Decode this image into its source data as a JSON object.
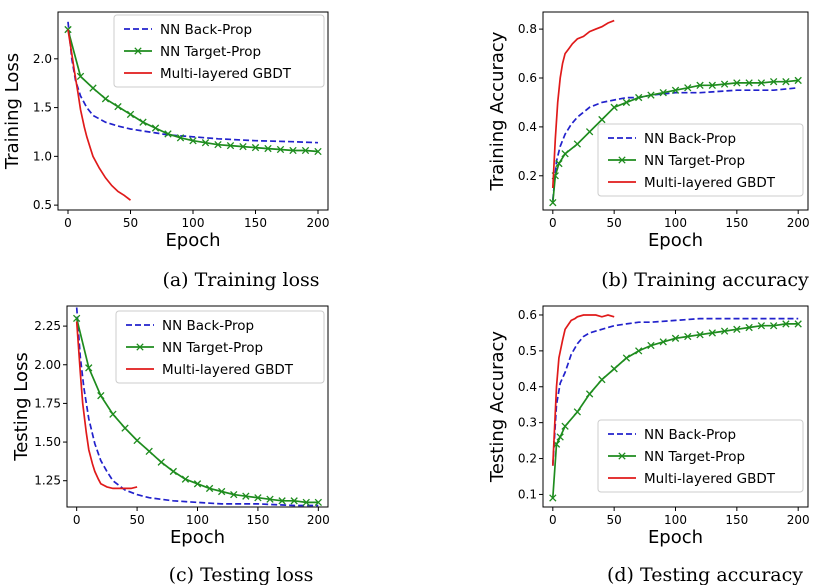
{
  "colors": {
    "backprop": "#2222cc",
    "targetprop": "#1e8c1e",
    "gbdt": "#e01a1a"
  },
  "chart_data": [
    {
      "type": "line",
      "caption": "(a) Training loss",
      "xlabel": "Epoch",
      "ylabel": "Training Loss",
      "xlim": [
        -8,
        208
      ],
      "ylim": [
        0.45,
        2.48
      ],
      "xticks": [
        0,
        50,
        100,
        150,
        200
      ],
      "xtick_labels": [
        "0",
        "50",
        "100",
        "150",
        "200"
      ],
      "yticks": [
        0.5,
        1.0,
        1.5,
        2.0
      ],
      "ytick_labels": [
        "0.5",
        "1.0",
        "1.5",
        "2.0"
      ],
      "legend_position": "upper right",
      "series": [
        {
          "name": "NN Back-Prop",
          "style": "dashed",
          "x": [
            0,
            3,
            6,
            10,
            15,
            20,
            30,
            40,
            50,
            60,
            70,
            80,
            100,
            120,
            150,
            180,
            200
          ],
          "y": [
            2.38,
            2.0,
            1.78,
            1.62,
            1.5,
            1.42,
            1.35,
            1.31,
            1.28,
            1.26,
            1.24,
            1.22,
            1.2,
            1.18,
            1.16,
            1.15,
            1.14
          ]
        },
        {
          "name": "NN Target-Prop",
          "style": "solid-x",
          "x": [
            0,
            10,
            20,
            30,
            40,
            50,
            60,
            70,
            80,
            90,
            100,
            110,
            120,
            130,
            140,
            150,
            160,
            170,
            180,
            190,
            200
          ],
          "y": [
            2.3,
            1.82,
            1.7,
            1.59,
            1.51,
            1.43,
            1.35,
            1.29,
            1.23,
            1.19,
            1.16,
            1.14,
            1.12,
            1.11,
            1.1,
            1.09,
            1.08,
            1.07,
            1.06,
            1.06,
            1.05
          ]
        },
        {
          "name": "Multi-layered GBDT",
          "style": "solid",
          "x": [
            0,
            3,
            5,
            8,
            10,
            13,
            15,
            18,
            20,
            25,
            30,
            35,
            40,
            45,
            50
          ],
          "y": [
            2.3,
            2.05,
            1.88,
            1.65,
            1.48,
            1.3,
            1.2,
            1.08,
            1.0,
            0.88,
            0.78,
            0.7,
            0.64,
            0.6,
            0.55
          ]
        }
      ]
    },
    {
      "type": "line",
      "caption": "(b) Training accuracy",
      "xlabel": "Epoch",
      "ylabel": "Training Accuracy",
      "xlim": [
        -8,
        208
      ],
      "ylim": [
        0.06,
        0.87
      ],
      "xticks": [
        0,
        50,
        100,
        150,
        200
      ],
      "xtick_labels": [
        "0",
        "50",
        "100",
        "150",
        "200"
      ],
      "yticks": [
        0.2,
        0.4,
        0.6,
        0.8
      ],
      "ytick_labels": [
        "0.2",
        "0.4",
        "0.6",
        "0.8"
      ],
      "legend_position": "lower right",
      "series": [
        {
          "name": "NN Back-Prop",
          "style": "dashed",
          "x": [
            0,
            3,
            6,
            10,
            15,
            20,
            30,
            40,
            50,
            60,
            70,
            80,
            100,
            120,
            150,
            180,
            200
          ],
          "y": [
            0.1,
            0.26,
            0.32,
            0.37,
            0.41,
            0.44,
            0.48,
            0.5,
            0.51,
            0.52,
            0.52,
            0.53,
            0.54,
            0.54,
            0.55,
            0.55,
            0.56
          ]
        },
        {
          "name": "NN Target-Prop",
          "style": "solid-x",
          "x": [
            0,
            2,
            5,
            10,
            20,
            30,
            40,
            50,
            60,
            70,
            80,
            90,
            100,
            110,
            120,
            130,
            140,
            150,
            160,
            170,
            180,
            190,
            200
          ],
          "y": [
            0.09,
            0.2,
            0.25,
            0.29,
            0.33,
            0.38,
            0.43,
            0.48,
            0.5,
            0.52,
            0.53,
            0.54,
            0.55,
            0.56,
            0.57,
            0.57,
            0.575,
            0.58,
            0.58,
            0.58,
            0.585,
            0.585,
            0.59
          ]
        },
        {
          "name": "Multi-layered GBDT",
          "style": "solid",
          "x": [
            0,
            2,
            4,
            6,
            8,
            10,
            13,
            16,
            20,
            25,
            30,
            35,
            40,
            45,
            50
          ],
          "y": [
            0.15,
            0.35,
            0.5,
            0.6,
            0.66,
            0.7,
            0.72,
            0.74,
            0.76,
            0.77,
            0.79,
            0.8,
            0.81,
            0.825,
            0.835
          ]
        }
      ]
    },
    {
      "type": "line",
      "caption": "(c) Testing loss",
      "xlabel": "Epoch",
      "ylabel": "Testing Loss",
      "xlim": [
        -8,
        208
      ],
      "ylim": [
        1.08,
        2.38
      ],
      "xticks": [
        0,
        50,
        100,
        150,
        200
      ],
      "xtick_labels": [
        "0",
        "50",
        "100",
        "150",
        "200"
      ],
      "yticks": [
        1.25,
        1.5,
        1.75,
        2.0,
        2.25
      ],
      "ytick_labels": [
        "1.25",
        "1.50",
        "1.75",
        "2.00",
        "2.25"
      ],
      "legend_position": "upper right",
      "series": [
        {
          "name": "NN Back-Prop",
          "style": "dashed",
          "x": [
            0,
            3,
            6,
            10,
            15,
            20,
            25,
            30,
            40,
            50,
            60,
            70,
            80,
            100,
            120,
            150,
            180,
            200
          ],
          "y": [
            2.37,
            2.05,
            1.85,
            1.65,
            1.49,
            1.38,
            1.31,
            1.25,
            1.19,
            1.16,
            1.14,
            1.13,
            1.12,
            1.11,
            1.1,
            1.1,
            1.09,
            1.09
          ]
        },
        {
          "name": "NN Target-Prop",
          "style": "solid-x",
          "x": [
            0,
            10,
            20,
            30,
            40,
            50,
            60,
            70,
            80,
            90,
            100,
            110,
            120,
            130,
            140,
            150,
            160,
            170,
            180,
            190,
            200
          ],
          "y": [
            2.3,
            1.98,
            1.8,
            1.68,
            1.59,
            1.51,
            1.44,
            1.37,
            1.31,
            1.26,
            1.23,
            1.2,
            1.18,
            1.16,
            1.15,
            1.14,
            1.13,
            1.12,
            1.12,
            1.11,
            1.11
          ]
        },
        {
          "name": "Multi-layered GBDT",
          "style": "solid",
          "x": [
            0,
            3,
            5,
            8,
            10,
            13,
            15,
            18,
            20,
            25,
            30,
            35,
            40,
            45,
            50
          ],
          "y": [
            2.28,
            1.95,
            1.75,
            1.56,
            1.45,
            1.36,
            1.31,
            1.26,
            1.23,
            1.21,
            1.2,
            1.2,
            1.2,
            1.2,
            1.21
          ]
        }
      ]
    },
    {
      "type": "line",
      "caption": "(d) Testing accuracy",
      "xlabel": "Epoch",
      "ylabel": "Testing Accuracy",
      "xlim": [
        -8,
        208
      ],
      "ylim": [
        0.065,
        0.625
      ],
      "xticks": [
        0,
        50,
        100,
        150,
        200
      ],
      "xtick_labels": [
        "0",
        "50",
        "100",
        "150",
        "200"
      ],
      "yticks": [
        0.1,
        0.2,
        0.3,
        0.4,
        0.5,
        0.6
      ],
      "ytick_labels": [
        "0.1",
        "0.2",
        "0.3",
        "0.4",
        "0.5",
        "0.6"
      ],
      "legend_position": "lower right",
      "series": [
        {
          "name": "NN Back-Prop",
          "style": "dashed",
          "x": [
            0,
            3,
            6,
            10,
            15,
            20,
            25,
            30,
            40,
            50,
            60,
            70,
            80,
            100,
            120,
            150,
            180,
            200
          ],
          "y": [
            0.18,
            0.35,
            0.41,
            0.44,
            0.49,
            0.52,
            0.54,
            0.55,
            0.56,
            0.57,
            0.575,
            0.58,
            0.58,
            0.585,
            0.59,
            0.59,
            0.59,
            0.59
          ]
        },
        {
          "name": "NN Target-Prop",
          "style": "solid-x",
          "x": [
            0,
            3,
            6,
            10,
            20,
            30,
            40,
            50,
            60,
            70,
            80,
            90,
            100,
            110,
            120,
            130,
            140,
            150,
            160,
            170,
            180,
            190,
            200
          ],
          "y": [
            0.09,
            0.24,
            0.26,
            0.29,
            0.33,
            0.38,
            0.42,
            0.45,
            0.48,
            0.5,
            0.515,
            0.525,
            0.535,
            0.54,
            0.545,
            0.55,
            0.555,
            0.56,
            0.565,
            0.57,
            0.57,
            0.575,
            0.575
          ]
        },
        {
          "name": "Multi-layered GBDT",
          "style": "solid",
          "x": [
            0,
            3,
            5,
            8,
            10,
            13,
            15,
            18,
            20,
            25,
            30,
            35,
            40,
            45,
            50
          ],
          "y": [
            0.18,
            0.4,
            0.48,
            0.53,
            0.56,
            0.575,
            0.585,
            0.59,
            0.595,
            0.6,
            0.6,
            0.6,
            0.595,
            0.6,
            0.595
          ]
        }
      ]
    }
  ]
}
